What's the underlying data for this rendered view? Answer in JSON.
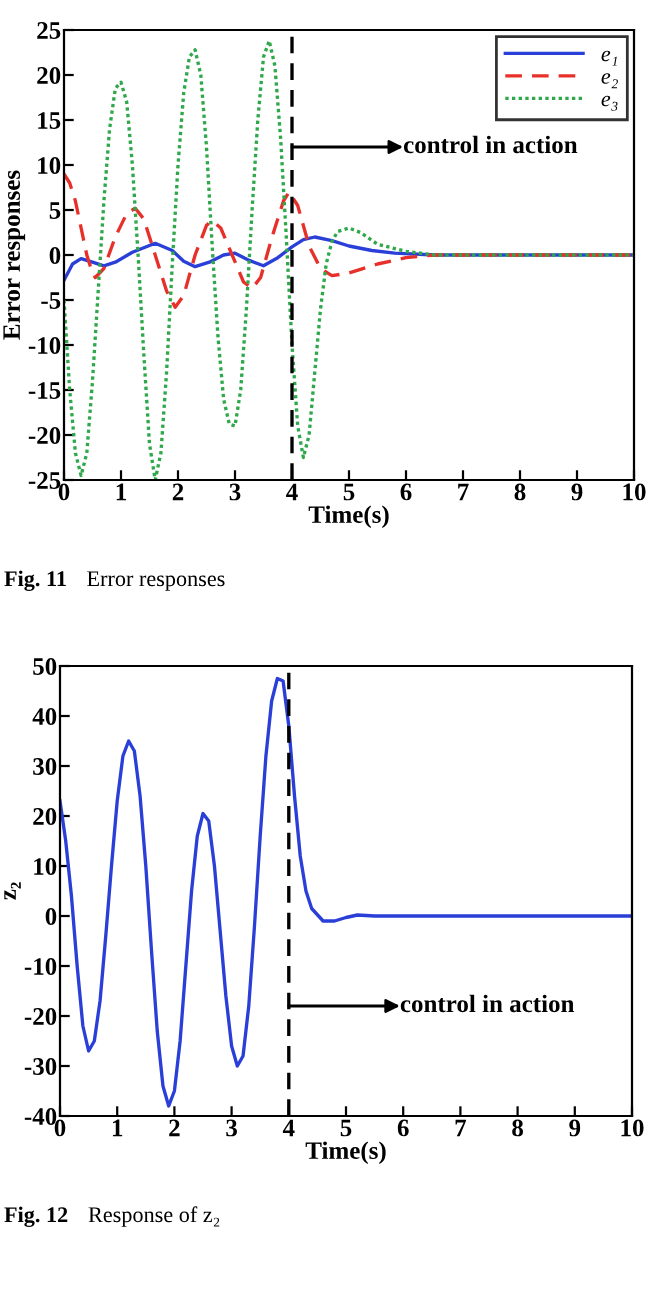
{
  "chart_data": [
    {
      "type": "line",
      "xlabel": "Time(s)",
      "ylabel": "Error responses",
      "xlim": [
        0,
        10
      ],
      "ylim": [
        -25,
        25
      ],
      "xticks": [
        0,
        1,
        2,
        3,
        4,
        5,
        6,
        7,
        8,
        9,
        10
      ],
      "yticks": [
        -25,
        -20,
        -15,
        -10,
        -5,
        0,
        5,
        10,
        15,
        20,
        25
      ],
      "grid": false,
      "legend": "top right",
      "series": [
        {
          "name": "e₁",
          "color": "#2a3fd8",
          "line_style": "solid",
          "x": [
            0,
            0.15,
            0.3,
            0.5,
            0.7,
            0.9,
            1.2,
            1.6,
            1.9,
            2.1,
            2.3,
            2.55,
            2.8,
            3.0,
            3.25,
            3.5,
            3.75,
            4.0,
            4.2,
            4.4,
            4.7,
            5.0,
            5.4,
            5.8,
            6.5,
            10
          ],
          "values": [
            -2.8,
            -1,
            -0.4,
            -0.8,
            -1.2,
            -0.8,
            0.3,
            1.3,
            0.5,
            -0.7,
            -1.3,
            -0.8,
            0,
            0.2,
            -0.6,
            -1.2,
            -0.3,
            0.9,
            1.7,
            2.0,
            1.6,
            1.0,
            0.5,
            0.2,
            0,
            0
          ]
        },
        {
          "name": "e₂",
          "color": "#e8302a",
          "line_style": "dashed",
          "x": [
            0,
            0.1,
            0.2,
            0.3,
            0.4,
            0.5,
            0.55,
            0.7,
            0.9,
            1.1,
            1.25,
            1.4,
            1.6,
            1.8,
            1.95,
            2.1,
            2.3,
            2.5,
            2.6,
            2.75,
            2.95,
            3.15,
            3.3,
            3.45,
            3.65,
            3.85,
            3.95,
            4.1,
            4.3,
            4.5,
            4.7,
            5.0,
            5.5,
            6.0,
            6.5,
            10
          ],
          "values": [
            9,
            8,
            6,
            3,
            0,
            -2,
            -2.5,
            -1.5,
            2,
            4.6,
            5.2,
            4,
            0,
            -4,
            -5.8,
            -4.5,
            0,
            3.3,
            3.8,
            3,
            0,
            -3,
            -3.7,
            -2.5,
            2,
            6,
            7,
            5.5,
            1,
            -1.5,
            -2.3,
            -2,
            -1,
            -0.3,
            0,
            0
          ]
        },
        {
          "name": "e₃",
          "color": "#2ea84a",
          "line_style": "dotted",
          "x": [
            0,
            0.1,
            0.2,
            0.3,
            0.4,
            0.5,
            0.6,
            0.7,
            0.8,
            0.9,
            1.0,
            1.1,
            1.2,
            1.3,
            1.4,
            1.5,
            1.6,
            1.7,
            1.8,
            1.9,
            2.0,
            2.1,
            2.2,
            2.3,
            2.4,
            2.5,
            2.6,
            2.7,
            2.8,
            2.9,
            3.0,
            3.1,
            3.2,
            3.3,
            3.4,
            3.5,
            3.6,
            3.7,
            3.8,
            3.9,
            4.0,
            4.1,
            4.2,
            4.3,
            4.4,
            4.5,
            4.6,
            4.7,
            4.8,
            5.0,
            5.2,
            5.5,
            6.0,
            6.5,
            10
          ],
          "values": [
            -5,
            -15,
            -22,
            -24.5,
            -22,
            -14,
            -4,
            6,
            14,
            18.5,
            19.2,
            17,
            10,
            0,
            -11,
            -21,
            -25,
            -22,
            -13,
            -1,
            10,
            18,
            22,
            22.8,
            20,
            12,
            1,
            -9,
            -16,
            -18.8,
            -19,
            -15,
            -6,
            5,
            15,
            22,
            23.8,
            21,
            13,
            2,
            -10,
            -19,
            -22.5,
            -20,
            -13,
            -6,
            -1,
            1.5,
            2.6,
            3,
            2.5,
            1.2,
            0.4,
            0,
            0
          ]
        }
      ],
      "ref_lines": [
        {
          "axis": "x",
          "value": 4,
          "color": "#000000",
          "line_style": "dashed"
        }
      ],
      "annotations": [
        {
          "text": "control in action",
          "x": 4,
          "y": 12
        },
        "Fig. 11",
        "Error responses"
      ]
    },
    {
      "type": "line",
      "xlabel": "Time(s)",
      "ylabel": "z₂",
      "xlim": [
        0,
        10
      ],
      "ylim": [
        -40,
        50
      ],
      "xticks": [
        0,
        1,
        2,
        3,
        4,
        5,
        6,
        7,
        8,
        9,
        10
      ],
      "yticks": [
        -40,
        -30,
        -20,
        -10,
        0,
        10,
        20,
        30,
        40,
        50
      ],
      "grid": false,
      "legend": false,
      "series": [
        {
          "color": "#2a3fd8",
          "line_style": "solid",
          "x": [
            0,
            0.1,
            0.2,
            0.3,
            0.4,
            0.5,
            0.6,
            0.7,
            0.8,
            0.9,
            1.0,
            1.1,
            1.2,
            1.3,
            1.4,
            1.5,
            1.6,
            1.7,
            1.8,
            1.9,
            2.0,
            2.1,
            2.2,
            2.3,
            2.4,
            2.5,
            2.6,
            2.7,
            2.8,
            2.9,
            3.0,
            3.1,
            3.2,
            3.3,
            3.4,
            3.5,
            3.6,
            3.7,
            3.8,
            3.9,
            4.0,
            4.1,
            4.2,
            4.3,
            4.4,
            4.6,
            4.8,
            5.0,
            5.2,
            5.5,
            10
          ],
          "values": [
            23,
            15,
            4,
            -10,
            -22,
            -27,
            -25,
            -17,
            -4,
            10,
            23,
            32,
            35,
            33,
            24,
            10,
            -7,
            -23,
            -34,
            -38,
            -35,
            -25,
            -10,
            5,
            16,
            20.5,
            19,
            10,
            -3,
            -16,
            -26,
            -30,
            -28,
            -18,
            -2,
            16,
            32,
            43,
            47.5,
            47,
            38,
            24,
            12,
            5,
            1.5,
            -1,
            -1,
            -0.3,
            0.2,
            0,
            0
          ]
        }
      ],
      "ref_lines": [
        {
          "axis": "x",
          "value": 4,
          "color": "#000000",
          "line_style": "dashed"
        }
      ],
      "annotations": [
        {
          "text": "control in action",
          "x": 4,
          "y": -18
        },
        "Fig. 12",
        "Response of z₂"
      ]
    }
  ]
}
